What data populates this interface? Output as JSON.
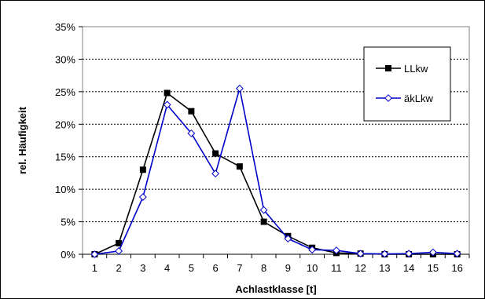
{
  "chart_data": {
    "type": "line",
    "xlabel": "Achlastklasse [t]",
    "ylabel": "rel. Häufigkeit",
    "ylim": [
      0,
      35
    ],
    "y_tick_labels": [
      "0%",
      "5%",
      "10%",
      "15%",
      "20%",
      "25%",
      "30%",
      "35%"
    ],
    "categories": [
      "1",
      "2",
      "3",
      "4",
      "5",
      "6",
      "7",
      "8",
      "9",
      "10",
      "11",
      "12",
      "13",
      "14",
      "15",
      "16"
    ],
    "grid": "horizontal dashed",
    "legend_position": "top-right",
    "series": [
      {
        "name": "LLkw",
        "color": "#000000",
        "marker": "filled-square",
        "values": [
          0.0,
          1.7,
          13.0,
          24.8,
          22.0,
          15.5,
          13.5,
          5.0,
          2.8,
          1.0,
          0.2,
          0.1,
          0.0,
          0.0,
          0.0,
          0.0
        ]
      },
      {
        "name": "äkLkw",
        "color": "#0000cc",
        "marker": "open-diamond",
        "values": [
          0.0,
          0.5,
          8.8,
          23.0,
          18.6,
          12.4,
          25.5,
          6.8,
          2.4,
          0.7,
          0.6,
          0.1,
          0.05,
          0.1,
          0.3,
          0.1
        ]
      }
    ]
  }
}
